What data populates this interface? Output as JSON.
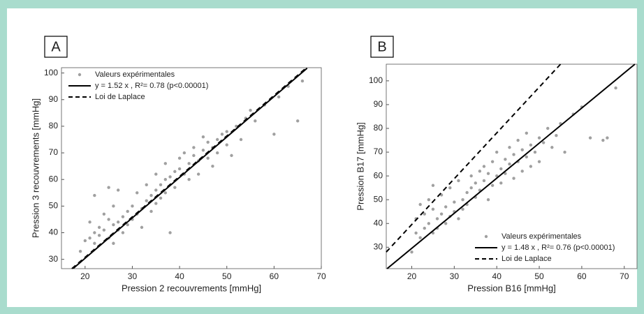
{
  "chart_data": [
    {
      "type": "scatter",
      "panel_label": "A",
      "x_label": "Pression 2 recouvrements [mmHg]",
      "y_label": "Pression 3 recouvrements [mmHg]",
      "xlim": [
        15,
        70
      ],
      "ylim": [
        26.5,
        102
      ],
      "xticks": [
        20,
        30,
        40,
        50,
        60,
        70
      ],
      "yticks": [
        30,
        40,
        50,
        60,
        70,
        80,
        90,
        100
      ],
      "legend": "upper left",
      "series": [
        {
          "name": "Valeurs expérimentales",
          "color": "#a0a0a0",
          "x": [
            19,
            20,
            21,
            21,
            22,
            22,
            22,
            23,
            23,
            24,
            24,
            25,
            25,
            25,
            26,
            26,
            26,
            27,
            27,
            27,
            28,
            28,
            29,
            29,
            30,
            30,
            31,
            31,
            32,
            32,
            33,
            33,
            34,
            34,
            35,
            35,
            35,
            36,
            36,
            37,
            37,
            37,
            38,
            38,
            39,
            39,
            40,
            40,
            41,
            41,
            42,
            42,
            43,
            43,
            44,
            44,
            45,
            45,
            46,
            46,
            47,
            47,
            48,
            48,
            49,
            50,
            50,
            51,
            52,
            53,
            54,
            55,
            56,
            58,
            60,
            61,
            63,
            65,
            66
          ],
          "values": [
            33,
            37,
            38,
            44,
            40,
            36,
            54,
            42,
            39,
            47,
            41,
            45,
            38,
            57,
            43,
            36,
            50,
            44,
            41,
            56,
            46,
            40,
            48,
            43,
            50,
            45,
            47,
            55,
            49,
            42,
            52,
            58,
            54,
            48,
            56,
            51,
            62,
            58,
            53,
            60,
            55,
            66,
            61,
            40,
            63,
            57,
            64,
            68,
            62,
            70,
            66,
            60,
            69,
            72,
            67,
            62,
            71,
            76,
            68,
            74,
            72,
            65,
            75,
            70,
            77,
            73,
            78,
            69,
            80,
            75,
            83,
            86,
            82,
            88,
            77,
            91,
            95,
            82,
            97
          ]
        }
      ],
      "lines": [
        {
          "name": "y =  1.52 x , R²=  0.78 (p<0.00001)",
          "style": "solid",
          "x": [
            17.5,
            67
          ],
          "y": [
            26.6,
            101.8
          ]
        },
        {
          "name": "Loi de Laplace",
          "style": "dashed",
          "x": [
            17.2,
            66.8
          ],
          "y": [
            26.5,
            101.9
          ]
        }
      ]
    },
    {
      "type": "scatter",
      "panel_label": "B",
      "x_label": "Pression B16 [mmHg]",
      "y_label": "Pression B17 [mmHg]",
      "xlim": [
        14,
        73
      ],
      "ylim": [
        21,
        107
      ],
      "xticks": [
        20,
        30,
        40,
        50,
        60,
        70
      ],
      "yticks": [
        30,
        40,
        50,
        60,
        70,
        80,
        90,
        100
      ],
      "legend": "lower right",
      "series": [
        {
          "name": "Valeurs expérimentales",
          "color": "#a0a0a0",
          "x": [
            20,
            21,
            21,
            22,
            22,
            23,
            23,
            24,
            24,
            25,
            25,
            25,
            26,
            26,
            27,
            27,
            28,
            28,
            29,
            29,
            30,
            30,
            31,
            31,
            32,
            32,
            33,
            33,
            34,
            34,
            35,
            35,
            36,
            36,
            37,
            37,
            38,
            38,
            39,
            39,
            40,
            40,
            41,
            41,
            42,
            42,
            43,
            43,
            44,
            44,
            45,
            45,
            46,
            46,
            47,
            47,
            48,
            48,
            49,
            50,
            50,
            51,
            52,
            53,
            54,
            55,
            56,
            58,
            60,
            62,
            65,
            66,
            68
          ],
          "values": [
            28,
            36,
            42,
            34,
            48,
            38,
            44,
            40,
            50,
            36,
            46,
            56,
            42,
            38,
            44,
            52,
            40,
            47,
            43,
            55,
            45,
            49,
            42,
            58,
            50,
            46,
            53,
            48,
            55,
            60,
            51,
            57,
            62,
            54,
            58,
            64,
            50,
            61,
            66,
            56,
            60,
            70,
            63,
            57,
            67,
            61,
            65,
            72,
            59,
            69,
            66,
            75,
            62,
            71,
            68,
            78,
            64,
            73,
            70,
            76,
            66,
            74,
            80,
            72,
            77,
            82,
            70,
            86,
            89,
            76,
            75,
            76,
            97
          ]
        }
      ],
      "lines": [
        {
          "name": "y =  1.48 x , R²=  0.76 (p<0.00001)",
          "style": "solid",
          "x": [
            14.2,
            72.5
          ],
          "y": [
            21,
            107
          ]
        },
        {
          "name": "Loi de Laplace",
          "style": "dashed",
          "x": [
            14,
            55
          ],
          "y": [
            28,
            107
          ]
        }
      ]
    }
  ]
}
